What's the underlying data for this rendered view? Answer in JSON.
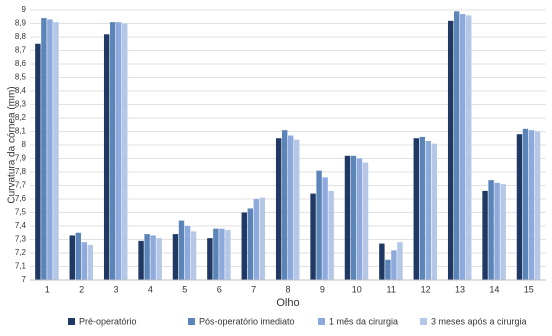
{
  "chart_data": {
    "type": "bar",
    "x_label": "Olho",
    "y_label": "Curvatura da córnea (mm)",
    "categories": [
      "1",
      "2",
      "3",
      "4",
      "5",
      "6",
      "7",
      "8",
      "9",
      "10",
      "11",
      "12",
      "13",
      "14",
      "15"
    ],
    "series": [
      {
        "name": "Pré-operatório",
        "color": "#1f3864",
        "values": [
          8.75,
          7.33,
          8.82,
          7.29,
          7.34,
          7.31,
          7.5,
          8.05,
          7.64,
          7.92,
          7.27,
          8.05,
          8.92,
          7.66,
          8.08
        ]
      },
      {
        "name": "Pós-operatório imediato",
        "color": "#5b84b8",
        "values": [
          8.94,
          7.35,
          8.91,
          7.34,
          7.44,
          7.38,
          7.53,
          8.11,
          7.81,
          7.92,
          7.15,
          8.06,
          8.99,
          7.74,
          8.12
        ]
      },
      {
        "name": "1 mês da cirurgia",
        "color": "#8ea9db",
        "values": [
          8.93,
          7.28,
          8.91,
          7.33,
          7.4,
          7.38,
          7.6,
          8.07,
          7.76,
          7.9,
          7.22,
          8.03,
          8.97,
          7.72,
          8.11
        ]
      },
      {
        "name": "3 meses após a cirurgia",
        "color": "#b4c7e7",
        "values": [
          8.91,
          7.26,
          8.9,
          7.31,
          7.36,
          7.37,
          7.61,
          8.04,
          7.66,
          7.87,
          7.28,
          8.01,
          8.96,
          7.71,
          8.1
        ]
      }
    ],
    "ylim": [
      7,
      9
    ],
    "yticks": [
      7,
      {
        "value": 7.1,
        "label": "7,1"
      },
      {
        "value": 7.2,
        "label": "7,2"
      },
      {
        "value": 7.3,
        "label": "7,3"
      },
      {
        "value": 7.4,
        "label": "7,4"
      },
      {
        "value": 7.5,
        "label": "7,5"
      },
      {
        "value": 7.6,
        "label": "7,6"
      },
      {
        "value": 7.7,
        "label": "7,7"
      },
      {
        "value": 7.8,
        "label": "7,8"
      },
      {
        "value": 7.9,
        "label": "7,9"
      },
      8,
      {
        "value": 8.1,
        "label": "8,1"
      },
      {
        "value": 8.2,
        "label": "8,2"
      },
      {
        "value": 8.3,
        "label": "8,3"
      },
      {
        "value": 8.4,
        "label": "8,4"
      },
      {
        "value": 8.5,
        "label": "8,5"
      },
      {
        "value": 8.6,
        "label": "8,6"
      },
      {
        "value": 8.7,
        "label": "8,7"
      },
      {
        "value": 8.8,
        "label": "8,8"
      },
      {
        "value": 8.9,
        "label": "8,9"
      },
      9
    ],
    "grid": true
  }
}
